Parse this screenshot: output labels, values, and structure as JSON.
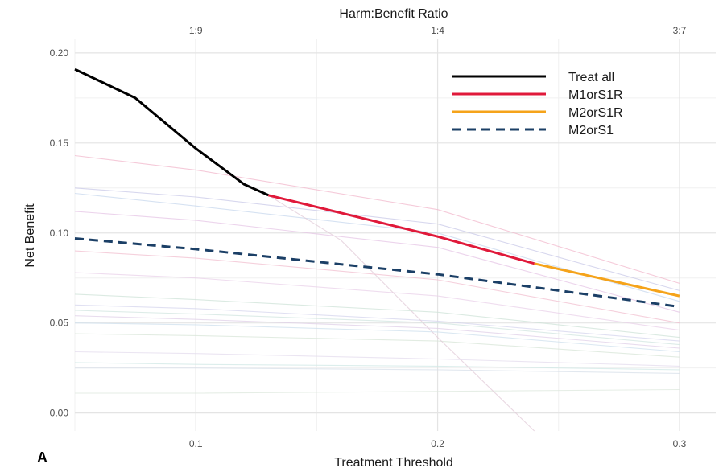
{
  "chart_data": {
    "type": "line",
    "panel_label": "A",
    "xlabel": "Treatment Threshold",
    "ylabel": "Net Benefit",
    "top_axis_title": "Harm:Benefit Ratio",
    "xlim": [
      0.05,
      0.315
    ],
    "ylim": [
      -0.01,
      0.208
    ],
    "x_ticks": [
      0.1,
      0.2,
      0.3
    ],
    "x_tick_labels": [
      "0.1",
      "0.2",
      "0.3"
    ],
    "y_ticks": [
      0.0,
      0.05,
      0.1,
      0.15,
      0.2
    ],
    "y_tick_labels": [
      "0.00",
      "0.05",
      "0.10",
      "0.15",
      "0.20"
    ],
    "top_ticks": [
      0.1,
      0.2,
      0.3
    ],
    "top_tick_labels": [
      "1:9",
      "1:4",
      "3:7"
    ],
    "grid": true,
    "legend_position": "top-right",
    "series": [
      {
        "name": "Treat all",
        "color": "#000000",
        "style": "solid",
        "points": [
          [
            0.05,
            0.191
          ],
          [
            0.075,
            0.175
          ],
          [
            0.1,
            0.147
          ],
          [
            0.12,
            0.127
          ],
          [
            0.13,
            0.121
          ]
        ]
      },
      {
        "name": "M1orS1R",
        "color": "#e0193a",
        "style": "solid",
        "points": [
          [
            0.13,
            0.121
          ],
          [
            0.2,
            0.098
          ],
          [
            0.24,
            0.083
          ]
        ]
      },
      {
        "name": "M2orS1R",
        "color": "#f5a31a",
        "style": "solid",
        "points": [
          [
            0.24,
            0.083
          ],
          [
            0.3,
            0.065
          ]
        ]
      },
      {
        "name": "M2orS1",
        "color": "#1b3f66",
        "style": "dashed",
        "points": [
          [
            0.05,
            0.097
          ],
          [
            0.1,
            0.091
          ],
          [
            0.2,
            0.077
          ],
          [
            0.3,
            0.059
          ]
        ]
      }
    ],
    "background_lines": [
      {
        "color": "#f2b8cc",
        "points": [
          [
            0.05,
            0.143
          ],
          [
            0.1,
            0.135
          ],
          [
            0.2,
            0.113
          ],
          [
            0.3,
            0.072
          ]
        ]
      },
      {
        "color": "#c9c9e8",
        "points": [
          [
            0.05,
            0.125
          ],
          [
            0.1,
            0.12
          ],
          [
            0.2,
            0.105
          ],
          [
            0.3,
            0.068
          ]
        ]
      },
      {
        "color": "#c8d8ee",
        "points": [
          [
            0.05,
            0.122
          ],
          [
            0.1,
            0.115
          ],
          [
            0.2,
            0.1
          ],
          [
            0.3,
            0.062
          ]
        ]
      },
      {
        "color": "#e6c6e6",
        "points": [
          [
            0.05,
            0.112
          ],
          [
            0.1,
            0.107
          ],
          [
            0.2,
            0.092
          ],
          [
            0.3,
            0.056
          ]
        ]
      },
      {
        "color": "#f2c0d0",
        "points": [
          [
            0.05,
            0.09
          ],
          [
            0.1,
            0.086
          ],
          [
            0.2,
            0.074
          ],
          [
            0.3,
            0.05
          ]
        ]
      },
      {
        "color": "#ead2ea",
        "points": [
          [
            0.05,
            0.078
          ],
          [
            0.1,
            0.075
          ],
          [
            0.2,
            0.065
          ],
          [
            0.3,
            0.046
          ]
        ]
      },
      {
        "color": "#cfe3d8",
        "points": [
          [
            0.05,
            0.066
          ],
          [
            0.1,
            0.063
          ],
          [
            0.2,
            0.056
          ],
          [
            0.3,
            0.042
          ]
        ]
      },
      {
        "color": "#d6d6ee",
        "points": [
          [
            0.05,
            0.06
          ],
          [
            0.1,
            0.058
          ],
          [
            0.2,
            0.051
          ],
          [
            0.3,
            0.04
          ]
        ]
      },
      {
        "color": "#d2e6e0",
        "points": [
          [
            0.05,
            0.057
          ],
          [
            0.1,
            0.055
          ],
          [
            0.2,
            0.05
          ],
          [
            0.3,
            0.038
          ]
        ]
      },
      {
        "color": "#e0d0e8",
        "points": [
          [
            0.05,
            0.054
          ],
          [
            0.1,
            0.052
          ],
          [
            0.2,
            0.047
          ],
          [
            0.3,
            0.036
          ]
        ]
      },
      {
        "color": "#cfe0ee",
        "points": [
          [
            0.05,
            0.05
          ],
          [
            0.1,
            0.049
          ],
          [
            0.2,
            0.045
          ],
          [
            0.3,
            0.034
          ]
        ]
      },
      {
        "color": "#d8e6d8",
        "points": [
          [
            0.05,
            0.044
          ],
          [
            0.1,
            0.043
          ],
          [
            0.2,
            0.04
          ],
          [
            0.3,
            0.031
          ]
        ]
      },
      {
        "color": "#e4dcee",
        "points": [
          [
            0.05,
            0.034
          ],
          [
            0.1,
            0.033
          ],
          [
            0.2,
            0.03
          ],
          [
            0.3,
            0.026
          ]
        ]
      },
      {
        "color": "#d0e8e6",
        "points": [
          [
            0.05,
            0.028
          ],
          [
            0.1,
            0.027
          ],
          [
            0.2,
            0.026
          ],
          [
            0.3,
            0.024
          ]
        ]
      },
      {
        "color": "#d8e0ea",
        "points": [
          [
            0.05,
            0.025
          ],
          [
            0.1,
            0.025
          ],
          [
            0.2,
            0.024
          ],
          [
            0.3,
            0.022
          ]
        ]
      },
      {
        "color": "#dde8dd",
        "points": [
          [
            0.05,
            0.011
          ],
          [
            0.1,
            0.011
          ],
          [
            0.2,
            0.012
          ],
          [
            0.3,
            0.013
          ]
        ]
      },
      {
        "color": "#e2cbd8",
        "points": [
          [
            0.13,
            0.121
          ],
          [
            0.16,
            0.096
          ],
          [
            0.2,
            0.042
          ],
          [
            0.24,
            -0.01
          ]
        ]
      }
    ]
  }
}
